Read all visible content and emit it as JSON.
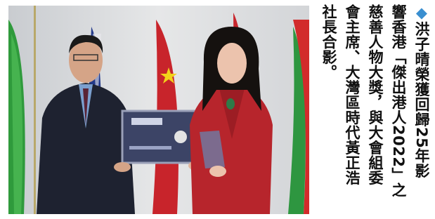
{
  "caption": {
    "marker": "◆",
    "lines": [
      "洪子晴榮獲回歸25年影",
      "響香港「傑出港人2022」之",
      "慈善人物大獎，與大會組委",
      "會主席、大灣區時代黃正浩",
      "社長合影。"
    ]
  }
}
